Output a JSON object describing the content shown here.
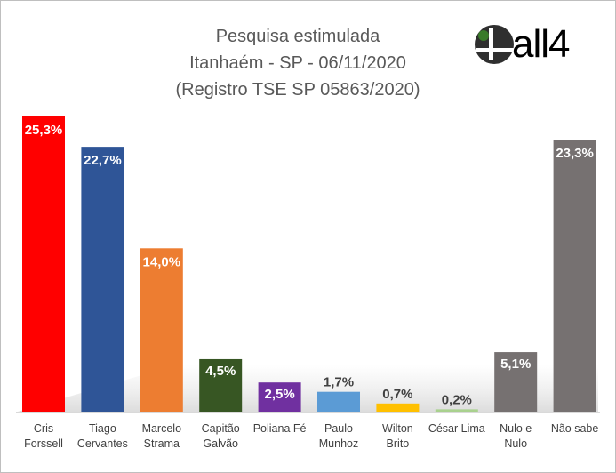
{
  "title_lines": [
    "Pesquisa estimulada",
    "Itanhaém - SP - 06/11/2020",
    "(Registro TSE SP 05863/2020)"
  ],
  "logo": {
    "text": "all4",
    "symbol_fill": "#2f2f2f",
    "dot_color": "#3a7a2a"
  },
  "chart_data": {
    "type": "bar",
    "title": "Pesquisa estimulada Itanhaém - SP - 06/11/2020 (Registro TSE SP 05863/2020)",
    "xlabel": "",
    "ylabel": "",
    "ylim": [
      0,
      25.3
    ],
    "grid": false,
    "legend": "none",
    "categories": [
      [
        "Cris",
        "Forssell"
      ],
      [
        "Tiago",
        "Cervantes"
      ],
      [
        "Marcelo",
        "Strama"
      ],
      [
        "Capitão",
        "Galvão"
      ],
      [
        "Poliana Fé"
      ],
      [
        "Paulo",
        "Munhoz"
      ],
      [
        "Wilton",
        "Brito"
      ],
      [
        "César Lima"
      ],
      [
        "Nulo e",
        "Nulo"
      ],
      [
        "Não sabe"
      ]
    ],
    "values": [
      25.3,
      22.7,
      14.0,
      4.5,
      2.5,
      1.7,
      0.7,
      0.2,
      5.1,
      23.3
    ],
    "value_labels": [
      "25,3%",
      "22,7%",
      "14,0%",
      "4,5%",
      "2,5%",
      "1,7%",
      "0,7%",
      "0,2%",
      "5,1%",
      "23,3%"
    ],
    "colors": [
      "#ff0000",
      "#2f5597",
      "#ed7d31",
      "#375623",
      "#7030a0",
      "#5b9bd5",
      "#ffc000",
      "#a9d18e",
      "#767171",
      "#767171"
    ],
    "label_inside": [
      true,
      true,
      true,
      false,
      false,
      false,
      false,
      false,
      false,
      true
    ]
  }
}
